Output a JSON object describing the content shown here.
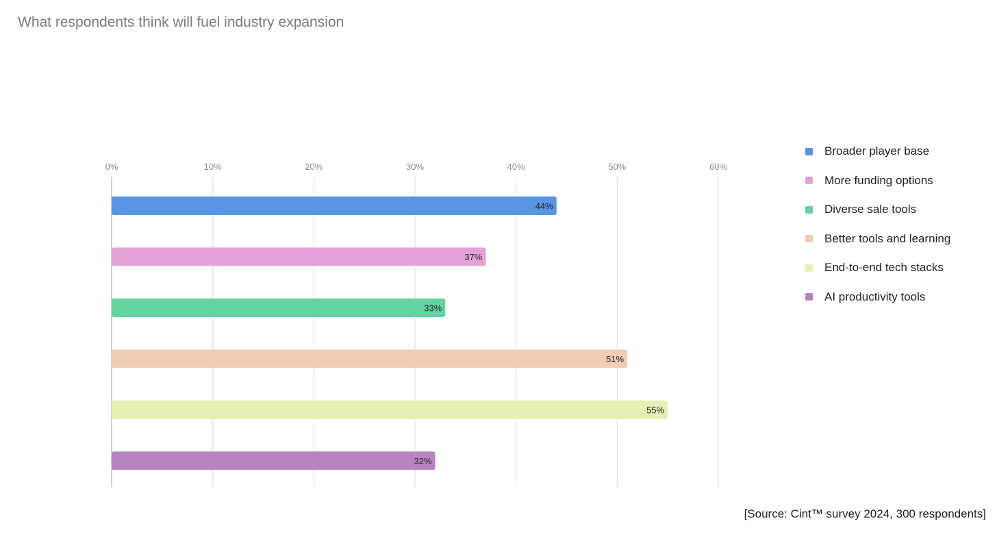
{
  "chart_data": {
    "type": "bar",
    "orientation": "horizontal",
    "title": "What respondents think will fuel industry expansion",
    "categories": [
      "Broader player base",
      "More funding options",
      "Diverse sale tools",
      "Better tools and learning",
      "End-to-end tech stacks",
      "AI productivity tools"
    ],
    "values": [
      44,
      37,
      33,
      51,
      55,
      32
    ],
    "value_labels": [
      "44%",
      "37%",
      "33%",
      "51%",
      "55%",
      "32%"
    ],
    "colors": [
      "#5b93e5",
      "#e4a1d8",
      "#63d3a2",
      "#f0cdb3",
      "#e5f1b4",
      "#b883c3"
    ],
    "xlim": [
      0,
      60
    ],
    "xticks": [
      0,
      10,
      20,
      30,
      40,
      50,
      60
    ],
    "xtick_labels": [
      "0%",
      "10%",
      "20%",
      "30%",
      "40%",
      "50%",
      "60%"
    ],
    "xlabel": "",
    "ylabel": "",
    "grid": true,
    "legend_position": "right",
    "source": "[Source: Cint™ survey 2024, 300 respondents]"
  }
}
